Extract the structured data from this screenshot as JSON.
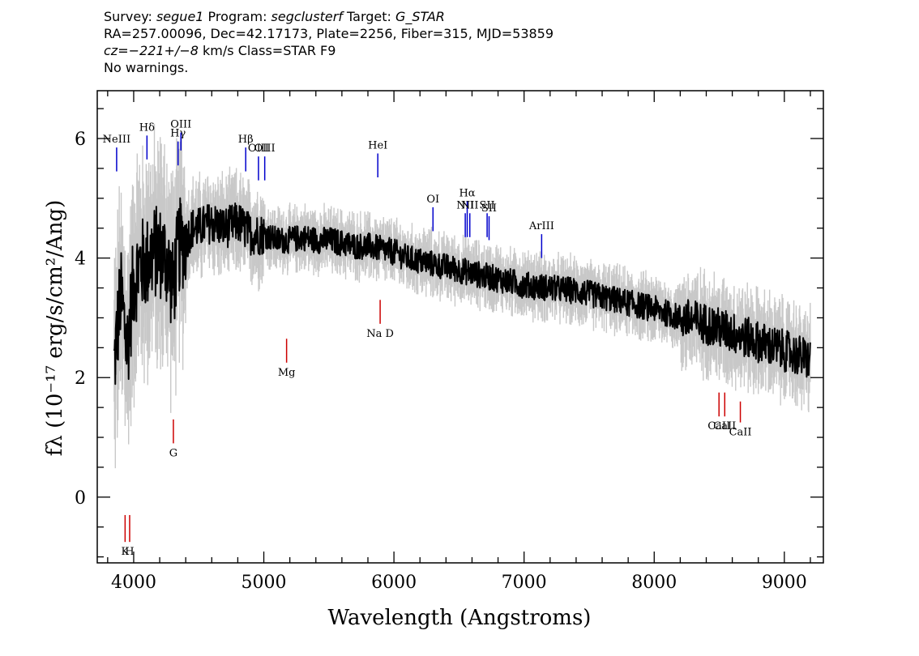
{
  "header": {
    "line1": {
      "survey_label": "Survey: ",
      "survey": "segue1",
      "program_label": " Program: ",
      "program": "segclusterf",
      "target_label": " Target: ",
      "target": "G_STAR"
    },
    "line2": "RA=257.00096, Dec=42.17173, Plate=2256, Fiber=315, MJD=53859",
    "line3": {
      "cz": "cz=−221+/−8",
      "rest": " km/s Class=STAR F9"
    },
    "line4": "No warnings."
  },
  "chart_data": {
    "type": "line",
    "title": "",
    "xlabel": "Wavelength (Angstroms)",
    "ylabel": "fλ (10⁻¹⁷ erg/s/cm²/Ang)",
    "xlim": [
      3720,
      9300
    ],
    "ylim": [
      -1.1,
      6.8
    ],
    "x_ticks": [
      4000,
      5000,
      6000,
      7000,
      8000,
      9000
    ],
    "y_ticks": [
      0,
      2,
      4,
      6
    ],
    "grid": false,
    "colors": {
      "flux": "#000000",
      "error_band": "#c8c8c8",
      "emission": "#0000cc",
      "absorption": "#cc0000"
    },
    "series": [
      {
        "x": [
          3850,
          3900,
          3950,
          4000,
          4050,
          4100,
          4150,
          4200,
          4250,
          4300,
          4350,
          4400,
          4450,
          4500,
          4600,
          4700,
          4800,
          4900,
          5000,
          5100,
          5200,
          5300,
          5400,
          5500,
          5600,
          5700,
          5800,
          5900,
          6000,
          6100,
          6200,
          6300,
          6400,
          6500,
          6600,
          6700,
          6800,
          6900,
          7000,
          7200,
          7400,
          7600,
          7800,
          8000,
          8200,
          8400,
          8600,
          8800,
          9000,
          9200
        ],
        "y": [
          2.2,
          3.4,
          2.5,
          3.6,
          3.9,
          3.9,
          4.1,
          4.1,
          4.0,
          3.5,
          4.2,
          4.3,
          4.5,
          4.5,
          4.6,
          4.5,
          4.6,
          4.4,
          4.4,
          4.3,
          4.3,
          4.35,
          4.3,
          4.3,
          4.25,
          4.2,
          4.2,
          4.15,
          4.1,
          4.0,
          3.95,
          3.9,
          3.85,
          3.8,
          3.75,
          3.7,
          3.65,
          3.6,
          3.55,
          3.5,
          3.45,
          3.35,
          3.25,
          3.15,
          3.0,
          2.9,
          2.75,
          2.6,
          2.45,
          2.3
        ]
      }
    ],
    "emission_lines": [
      {
        "label": "NeIII",
        "wave": 3869,
        "top": 5.85,
        "bottom": 5.45
      },
      {
        "label": "Hδ",
        "wave": 4102,
        "top": 6.05,
        "bottom": 5.65
      },
      {
        "label": "Hγ",
        "wave": 4341,
        "top": 5.95,
        "bottom": 5.55
      },
      {
        "label": "OIII",
        "wave": 4363,
        "top": 6.1,
        "bottom": 5.8
      },
      {
        "label": "Hβ",
        "wave": 4861,
        "top": 5.85,
        "bottom": 5.45
      },
      {
        "label": "OIII",
        "wave": 4959,
        "top": 5.7,
        "bottom": 5.3
      },
      {
        "label": "OIII",
        "wave": 5007,
        "top": 5.7,
        "bottom": 5.3
      },
      {
        "label": "HeI",
        "wave": 5876,
        "top": 5.75,
        "bottom": 5.35
      },
      {
        "label": "OI",
        "wave": 6300,
        "top": 4.85,
        "bottom": 4.45
      },
      {
        "label": "NII",
        "wave": 6548,
        "top": 4.75,
        "bottom": 4.35
      },
      {
        "label": "Hα",
        "wave": 6563,
        "top": 4.95,
        "bottom": 4.35
      },
      {
        "label": "NII",
        "wave": 6583,
        "top": 4.75,
        "bottom": 4.35
      },
      {
        "label": "SII",
        "wave": 6716,
        "top": 4.75,
        "bottom": 4.35
      },
      {
        "label": "SII",
        "wave": 6731,
        "top": 4.7,
        "bottom": 4.3
      },
      {
        "label": "ArIII",
        "wave": 7135,
        "top": 4.4,
        "bottom": 4.0
      }
    ],
    "absorption_lines": [
      {
        "label": "K",
        "wave": 3934,
        "top": -0.3,
        "bottom": -0.75
      },
      {
        "label": "H",
        "wave": 3969,
        "top": -0.3,
        "bottom": -0.75
      },
      {
        "label": "G",
        "wave": 4305,
        "top": 1.3,
        "bottom": 0.9
      },
      {
        "label": "Mg",
        "wave": 5175,
        "top": 2.65,
        "bottom": 2.25
      },
      {
        "label": "Na D",
        "wave": 5894,
        "top": 3.3,
        "bottom": 2.9
      },
      {
        "label": "CaII",
        "wave": 8498,
        "top": 1.75,
        "bottom": 1.35
      },
      {
        "label": "CaII",
        "wave": 8542,
        "top": 1.75,
        "bottom": 1.35
      },
      {
        "label": "CaII",
        "wave": 8662,
        "top": 1.6,
        "bottom": 1.25
      }
    ]
  }
}
